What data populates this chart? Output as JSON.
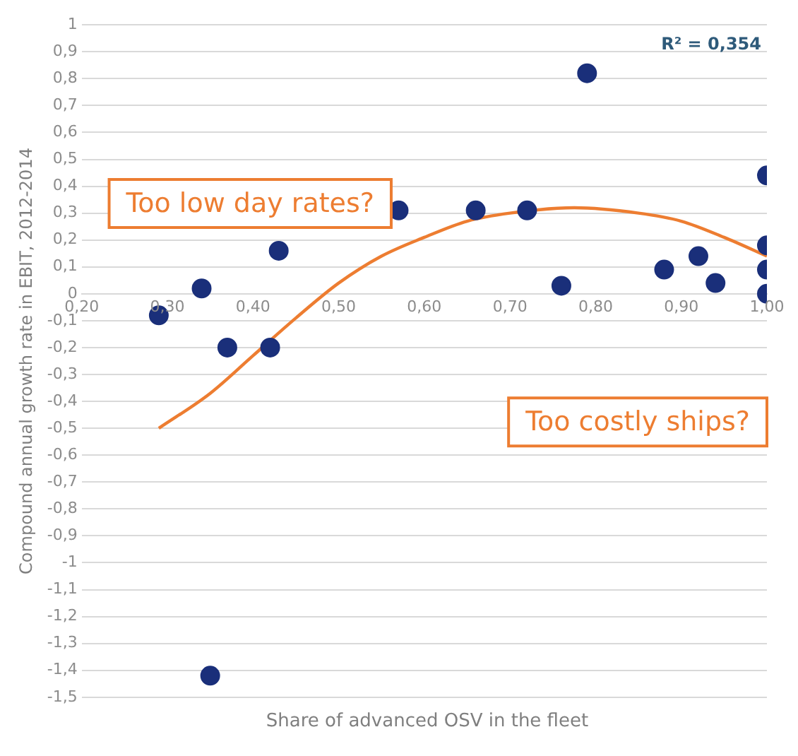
{
  "chart_data": {
    "type": "scatter",
    "xlabel": "Share of advanced OSV in the fleet",
    "ylabel": "Compound annual growth rate in EBIT, 2012-2014",
    "series": [
      {
        "marker": "circle",
        "color": "#1a2f7a",
        "x": [
          0.29,
          0.34,
          0.37,
          0.42,
          0.43,
          0.57,
          0.66,
          0.72,
          0.79,
          0.76,
          0.88,
          0.92,
          0.94,
          1.0,
          1.0,
          1.0,
          1.0,
          0.35
        ],
        "values": [
          -0.08,
          0.02,
          -0.2,
          -0.2,
          0.16,
          0.31,
          0.31,
          0.31,
          0.82,
          0.03,
          0.09,
          0.14,
          0.04,
          0.44,
          0.18,
          0.09,
          0.0,
          -1.42
        ]
      },
      {
        "type": "line",
        "color": "#ed7d31",
        "marker": "none",
        "x": [
          0.29,
          0.35,
          0.4,
          0.45,
          0.5,
          0.55,
          0.6,
          0.65,
          0.7,
          0.775,
          0.85,
          0.9,
          0.95,
          1.0
        ],
        "values": [
          -0.5,
          -0.37,
          -0.23,
          -0.09,
          0.04,
          0.14,
          0.21,
          0.27,
          0.3,
          0.32,
          0.3,
          0.27,
          0.21,
          0.14
        ]
      }
    ],
    "xlim": [
      0.2,
      1.0
    ],
    "xticks": [
      {
        "value": 0.2,
        "label": "0,20"
      },
      {
        "value": 0.3,
        "label": "0,30"
      },
      {
        "value": 0.4,
        "label": "0,40"
      },
      {
        "value": 0.5,
        "label": "0,50"
      },
      {
        "value": 0.6,
        "label": "0,60"
      },
      {
        "value": 0.7,
        "label": "0,70"
      },
      {
        "value": 0.8,
        "label": "0,80"
      },
      {
        "value": 0.9,
        "label": "0,90"
      },
      {
        "value": 1.0,
        "label": "1,00"
      }
    ],
    "ylim": [
      -1.5,
      1.0
    ],
    "yticks": [
      {
        "value": -1.5,
        "label": "-1,5"
      },
      {
        "value": -1.4,
        "label": "-1,4"
      },
      {
        "value": -1.3,
        "label": "-1,3"
      },
      {
        "value": -1.2,
        "label": "-1,2"
      },
      {
        "value": -1.1,
        "label": "-1,1"
      },
      -1,
      {
        "value": -0.9,
        "label": "-0,9"
      },
      {
        "value": -0.8,
        "label": "-0,8"
      },
      {
        "value": -0.7,
        "label": "-0,7"
      },
      {
        "value": -0.6,
        "label": "-0,6"
      },
      {
        "value": -0.5,
        "label": "-0,5"
      },
      {
        "value": -0.4,
        "label": "-0,4"
      },
      {
        "value": -0.3,
        "label": "-0,3"
      },
      {
        "value": -0.2,
        "label": "-0,2"
      },
      {
        "value": -0.1,
        "label": "-0,1"
      },
      0,
      {
        "value": 0.1,
        "label": "0,1"
      },
      {
        "value": 0.2,
        "label": "0,2"
      },
      {
        "value": 0.3,
        "label": "0,3"
      },
      {
        "value": 0.4,
        "label": "0,4"
      },
      {
        "value": 0.5,
        "label": "0,5"
      },
      {
        "value": 0.6,
        "label": "0,6"
      },
      {
        "value": 0.7,
        "label": "0,7"
      },
      {
        "value": 0.8,
        "label": "0,8"
      },
      {
        "value": 0.9,
        "label": "0,9"
      },
      1
    ],
    "annotations": [
      "Too low day rates?",
      "Too costly ships?",
      "R² = 0,354"
    ],
    "grid": "y",
    "legend": false,
    "line_style": "solid"
  }
}
